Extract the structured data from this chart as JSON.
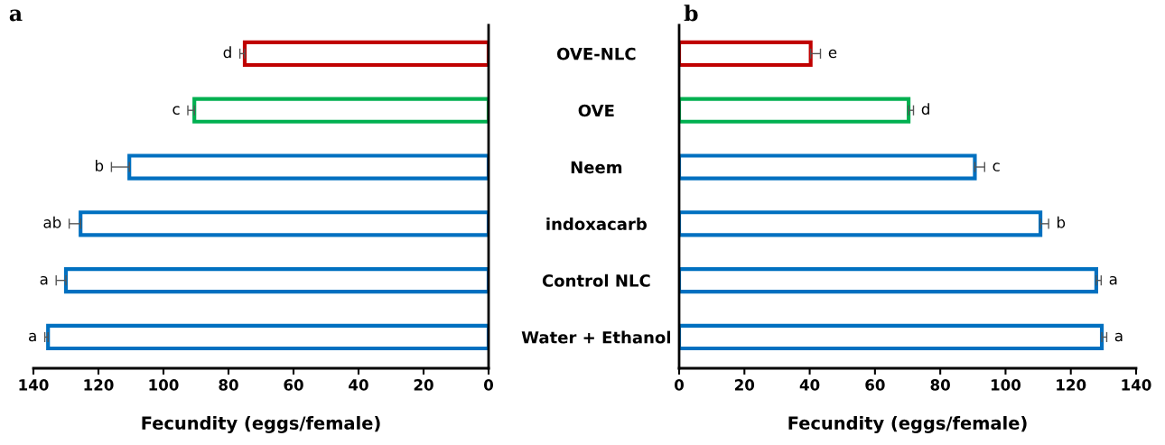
{
  "chart_data": [
    {
      "type": "bar",
      "orientation": "horizontal",
      "title": "a",
      "xlabel": "Fecundity (eggs/female)",
      "categories": [
        "OVE-NLC",
        "OVE",
        "Neem",
        "indoxacarb",
        "Control NLC",
        "Water + Ethanol"
      ],
      "values": [
        75,
        90.5,
        110.5,
        125.5,
        130,
        135.5
      ],
      "errors": [
        1.5,
        2,
        5.5,
        3.5,
        3,
        1
      ],
      "colors": [
        "#c00000",
        "#00b050",
        "#0070c0",
        "#0070c0",
        "#0070c0",
        "#0070c0"
      ],
      "xlim": [
        140,
        0
      ],
      "xticks": [
        140,
        120,
        100,
        80,
        60,
        40,
        20,
        0
      ],
      "tick_labels": "x",
      "grid": false,
      "annotations": [
        {
          "text": "d",
          "x": 75,
          "y": "OVE-NLC"
        },
        {
          "text": "c",
          "x": 90.5,
          "y": "OVE"
        },
        {
          "text": "b",
          "x": 110.5,
          "y": "Neem"
        },
        {
          "text": "ab",
          "x": 125.5,
          "y": "indoxacarb"
        },
        {
          "text": "a",
          "x": 130,
          "y": "Control NLC"
        },
        {
          "text": "a",
          "x": 135.5,
          "y": "Water + Ethanol"
        }
      ]
    },
    {
      "type": "bar",
      "orientation": "horizontal",
      "title": "b",
      "xlabel": "Fecundity (eggs/female)",
      "categories": [
        "OVE-NLC",
        "OVE",
        "Neem",
        "indoxacarb",
        "Control NLC",
        "Water + Ethanol"
      ],
      "values": [
        40.3,
        70.3,
        90.6,
        110.7,
        127.8,
        129.5
      ],
      "errors": [
        3,
        1.5,
        3,
        2.5,
        1.5,
        1.5
      ],
      "colors": [
        "#c00000",
        "#00b050",
        "#0070c0",
        "#0070c0",
        "#0070c0",
        "#0070c0"
      ],
      "xlim": [
        0,
        140
      ],
      "xticks": [
        0,
        20,
        40,
        60,
        80,
        100,
        120,
        140
      ],
      "grid": false,
      "annotations": [
        {
          "text": "e",
          "x": 40.3,
          "y": "OVE-NLC"
        },
        {
          "text": "d",
          "x": 70.3,
          "y": "OVE"
        },
        {
          "text": "c",
          "x": 90.6,
          "y": "Neem"
        },
        {
          "text": "b",
          "x": 110.7,
          "y": "indoxacarb"
        },
        {
          "text": "a",
          "x": 127.8,
          "y": "Control NLC"
        },
        {
          "text": "a",
          "x": 129.5,
          "y": "Water + Ethanol"
        }
      ]
    }
  ]
}
